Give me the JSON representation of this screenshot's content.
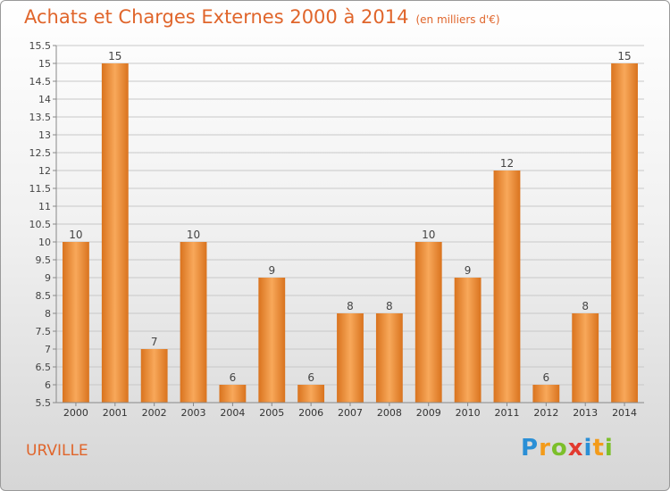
{
  "title": "Achats et Charges Externes 2000 à 2014",
  "unit_label": "(en milliers d'€)",
  "commune": "URVILLE",
  "logo": {
    "letters": [
      "P",
      "r",
      "o",
      "x",
      "i",
      "t",
      "i"
    ]
  },
  "colors": {
    "bar_light": "#f8a85a",
    "bar_dark": "#d9731e",
    "title": "#e0652b",
    "grid": "#c8c8c8"
  },
  "chart_data": {
    "type": "bar",
    "categories": [
      "2000",
      "2001",
      "2002",
      "2003",
      "2004",
      "2005",
      "2006",
      "2007",
      "2008",
      "2009",
      "2010",
      "2011",
      "2012",
      "2013",
      "2014"
    ],
    "values": [
      10,
      15,
      7,
      10,
      6,
      9,
      6,
      8,
      8,
      10,
      9,
      12,
      6,
      8,
      15
    ],
    "data_labels": [
      "10",
      "15",
      "7",
      "10",
      "6",
      "9",
      "6",
      "8",
      "8",
      "10",
      "9",
      "12",
      "6",
      "8",
      "15"
    ],
    "y_ticks": [
      "5.5",
      "6",
      "6.5",
      "7",
      "7.5",
      "8",
      "8.5",
      "9",
      "9.5",
      "10",
      "10.5",
      "11",
      "11.5",
      "12",
      "12.5",
      "13",
      "13.5",
      "14",
      "14.5",
      "15",
      "15.5"
    ],
    "ylim": [
      5.5,
      15.5
    ],
    "grid": true
  }
}
